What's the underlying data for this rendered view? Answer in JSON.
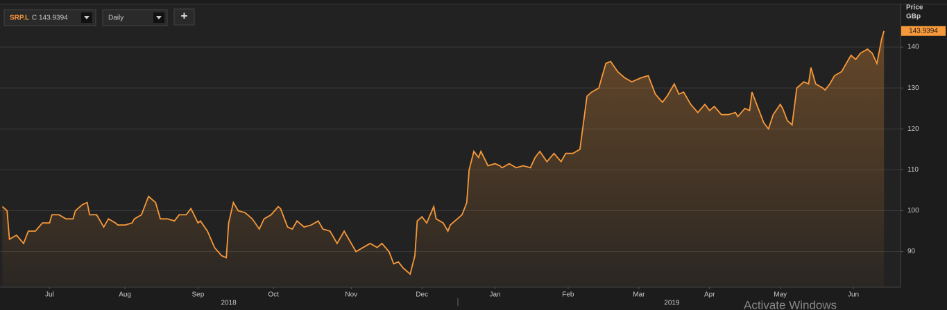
{
  "toolbar": {
    "symbol": "SRP.L",
    "close_label": "C 143.9394",
    "interval": "Daily",
    "add_button": "+",
    "watermark": "Activate Windows"
  },
  "chart_data": {
    "type": "area",
    "y_axis_label": "Price",
    "y_axis_unit": "GBp",
    "x": [
      1,
      3,
      4,
      7,
      10,
      12,
      15,
      18,
      21,
      22,
      25,
      28,
      31,
      32,
      35,
      37,
      38,
      41,
      43,
      44,
      46,
      49,
      50,
      53,
      56,
      57,
      60,
      63,
      66,
      68,
      71,
      74,
      76,
      79,
      81,
      84,
      85,
      88,
      91,
      94,
      96,
      97,
      99,
      101,
      104,
      107,
      110,
      112,
      115,
      118,
      119,
      122,
      124,
      126,
      129,
      132,
      135,
      137,
      140,
      143,
      146,
      149,
      151,
      154,
      157,
      160,
      162,
      165,
      167,
      169,
      171,
      174,
      176,
      177,
      179,
      181,
      184,
      185,
      188,
      190,
      191,
      194,
      196,
      198,
      199,
      201,
      203,
      204,
      207,
      210,
      212,
      213,
      216,
      219,
      222,
      225,
      227,
      229,
      232,
      235,
      238,
      240,
      243,
      246,
      249,
      251,
      254,
      255,
      257,
      259,
      262,
      265,
      268,
      270,
      272,
      275,
      278,
      281,
      283,
      286,
      288,
      290,
      293,
      296,
      299,
      301,
      303,
      306,
      309,
      312,
      313,
      316,
      318,
      319,
      321,
      324,
      326,
      328,
      331,
      332,
      334,
      336,
      338,
      341,
      343,
      344,
      346,
      349,
      350,
      352,
      354,
      357,
      359,
      361,
      363,
      365,
      368,
      370,
      372,
      374,
      375
    ],
    "series": [
      {
        "name": "SRP.L",
        "color": "#f7993a",
        "values": [
          101,
          100,
          93,
          94,
          92,
          95,
          95,
          97,
          97,
          99,
          99,
          98,
          98,
          100,
          101.5,
          102,
          99,
          99,
          97,
          96,
          98,
          97,
          96.5,
          96.5,
          97,
          98,
          99,
          103.5,
          102,
          98,
          98,
          97.5,
          99,
          99,
          100.5,
          97,
          97.5,
          95,
          91,
          89,
          88.5,
          97,
          102,
          100,
          99.5,
          98,
          95.5,
          98,
          99,
          101,
          100.5,
          96,
          95.5,
          97.5,
          96,
          96.5,
          97.5,
          95.5,
          95,
          92,
          95,
          92,
          90,
          91,
          92,
          91,
          92,
          90,
          87,
          87.5,
          86,
          84.5,
          89,
          97.5,
          98.5,
          97,
          101,
          98,
          97,
          95,
          96.5,
          98,
          99,
          102,
          110,
          114.5,
          113,
          114.5,
          111,
          111.5,
          111,
          110.5,
          111.5,
          110.5,
          111,
          110.5,
          113,
          114.5,
          112,
          114,
          112,
          114,
          114,
          115,
          128,
          129,
          130,
          132,
          136,
          136.5,
          134,
          132.5,
          131.5,
          132,
          132.5,
          133,
          128.5,
          126.5,
          128,
          131,
          128.5,
          129,
          126,
          124,
          126,
          124.5,
          125.5,
          123.5,
          123.5,
          124,
          123,
          125,
          124.5,
          129,
          126,
          121.5,
          120,
          123.5,
          126,
          125,
          122,
          121,
          130,
          131.5,
          131,
          135,
          131,
          130,
          129.5,
          131,
          133,
          134,
          136,
          138,
          137,
          138.5,
          139.5,
          138.5,
          136,
          142,
          143.9394
        ]
      }
    ],
    "xlim": [
      0,
      382
    ],
    "ylim": [
      81.3,
      150.5
    ],
    "yticks": [
      90,
      100,
      110,
      120,
      130,
      140
    ],
    "xticks": [
      {
        "value": 21,
        "label": "Jul"
      },
      {
        "value": 53,
        "label": "Aug"
      },
      {
        "value": 84,
        "label": "Sep"
      },
      {
        "value": 116,
        "label": "Oct"
      },
      {
        "value": 149,
        "label": "Nov"
      },
      {
        "value": 179,
        "label": "Dec"
      },
      {
        "value": 210,
        "label": "Jan"
      },
      {
        "value": 241,
        "label": "Feb"
      },
      {
        "value": 271,
        "label": "Mar"
      },
      {
        "value": 301,
        "label": "Apr"
      },
      {
        "value": 331,
        "label": "May"
      },
      {
        "value": 362,
        "label": "Jun"
      }
    ],
    "year_ticks": [
      {
        "value": 97,
        "label": "2018"
      },
      {
        "value": 285,
        "label": "2019"
      }
    ],
    "grid": true
  }
}
